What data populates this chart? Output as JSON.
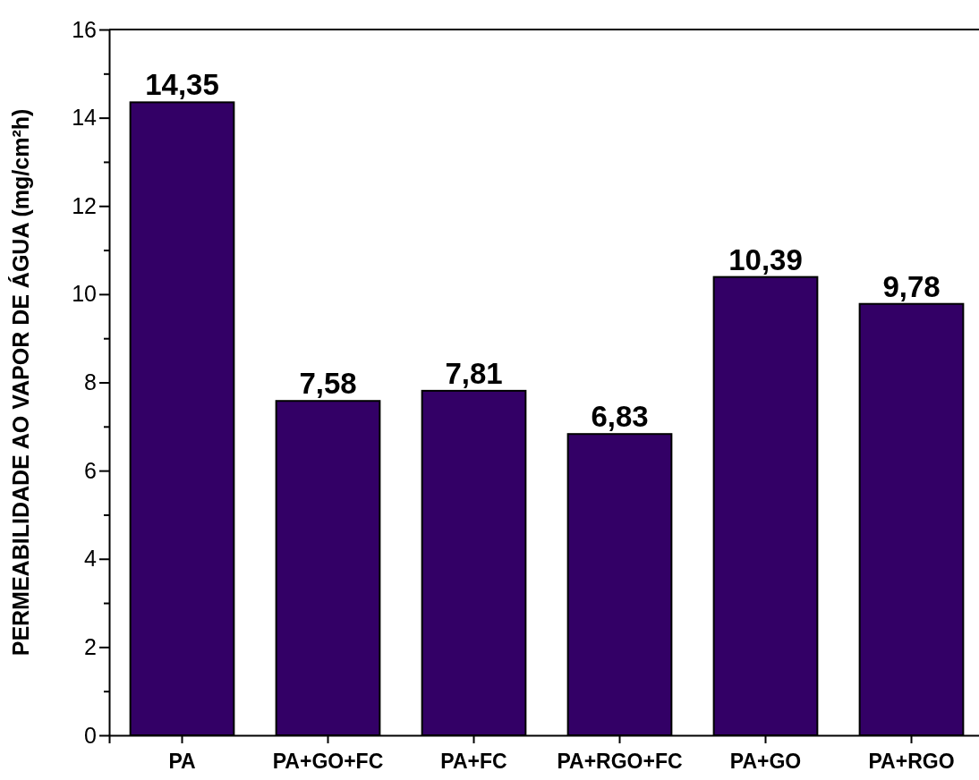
{
  "chart_data": {
    "type": "bar",
    "ylabel": "PERMEABILIDADE AO VAPOR DE ÁGUA (mg/cm²h)",
    "categories": [
      "PA",
      "PA+GO+FC",
      "PA+FC",
      "PA+RGO+FC",
      "PA+GO",
      "PA+RGO"
    ],
    "values": [
      14.35,
      7.58,
      7.81,
      6.83,
      10.39,
      9.78
    ],
    "value_labels": [
      "14,35",
      "7,58",
      "7,81",
      "6,83",
      "10,39",
      "9,78"
    ],
    "color": "#330066",
    "ylim": [
      0,
      16
    ],
    "yticks": [
      0,
      {
        "value": 1,
        "label": null
      },
      2,
      {
        "value": 3,
        "label": null
      },
      4,
      {
        "value": 5,
        "label": null
      },
      6,
      {
        "value": 7,
        "label": null
      },
      8,
      {
        "value": 9,
        "label": null
      },
      10,
      {
        "value": 11,
        "label": null
      },
      12,
      {
        "value": 13,
        "label": null
      },
      14,
      {
        "value": 15,
        "label": null
      },
      16
    ],
    "grid": false
  }
}
